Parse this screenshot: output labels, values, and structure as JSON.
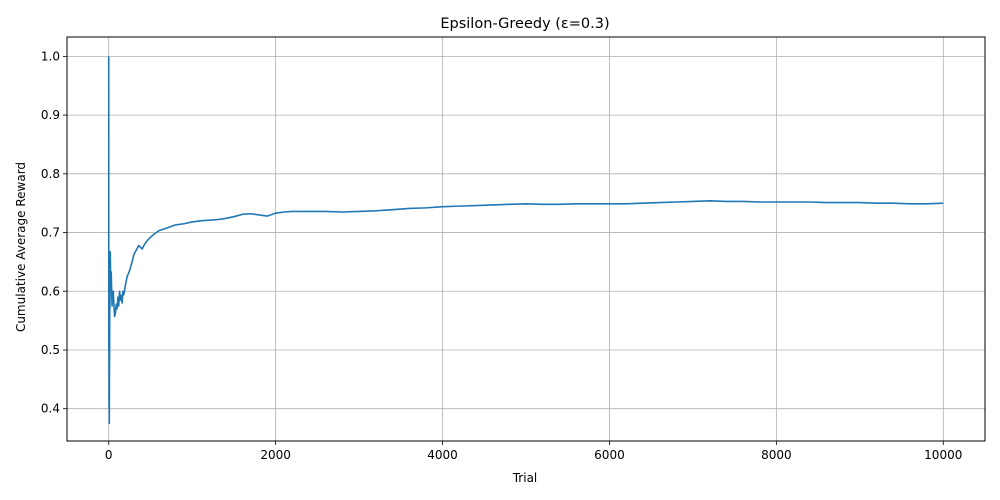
{
  "chart_data": {
    "type": "line",
    "title": "Epsilon-Greedy (ε=0.3)",
    "xlabel": "Trial",
    "ylabel": "Cumulative Average Reward",
    "xlim": [
      -500,
      10500
    ],
    "ylim": [
      0.345,
      1.033
    ],
    "xticks": [
      0,
      2000,
      4000,
      6000,
      8000,
      10000
    ],
    "yticks": [
      0.4,
      0.5,
      0.6,
      0.7,
      0.8,
      0.9,
      1.0
    ],
    "xtick_labels": [
      "0",
      "2000",
      "4000",
      "6000",
      "8000",
      "10000"
    ],
    "ytick_labels": [
      "0.4",
      "0.5",
      "0.6",
      "0.7",
      "0.8",
      "0.9",
      "1.0"
    ],
    "grid": true,
    "legend": "none",
    "line_color": "#1f77b4",
    "series": [
      {
        "values": [
          [
            0,
            1.0
          ],
          [
            1,
            0.5
          ],
          [
            2,
            0.667
          ],
          [
            3,
            0.5
          ],
          [
            4,
            0.4
          ],
          [
            5,
            0.5
          ],
          [
            6,
            0.429
          ],
          [
            7,
            0.375
          ],
          [
            8,
            0.444
          ],
          [
            10,
            0.5
          ],
          [
            12,
            0.583
          ],
          [
            14,
            0.571
          ],
          [
            16,
            0.625
          ],
          [
            18,
            0.667
          ],
          [
            20,
            0.65
          ],
          [
            25,
            0.6
          ],
          [
            30,
            0.633
          ],
          [
            35,
            0.6
          ],
          [
            40,
            0.575
          ],
          [
            45,
            0.6
          ],
          [
            50,
            0.58
          ],
          [
            55,
            0.6
          ],
          [
            60,
            0.583
          ],
          [
            70,
            0.557
          ],
          [
            80,
            0.563
          ],
          [
            90,
            0.578
          ],
          [
            100,
            0.57
          ],
          [
            110,
            0.59
          ],
          [
            120,
            0.575
          ],
          [
            130,
            0.6
          ],
          [
            140,
            0.585
          ],
          [
            150,
            0.593
          ],
          [
            160,
            0.58
          ],
          [
            170,
            0.6
          ],
          [
            180,
            0.594
          ],
          [
            200,
            0.61
          ],
          [
            220,
            0.625
          ],
          [
            250,
            0.635
          ],
          [
            280,
            0.65
          ],
          [
            300,
            0.662
          ],
          [
            330,
            0.67
          ],
          [
            360,
            0.678
          ],
          [
            400,
            0.672
          ],
          [
            430,
            0.68
          ],
          [
            460,
            0.686
          ],
          [
            500,
            0.692
          ],
          [
            550,
            0.698
          ],
          [
            600,
            0.703
          ],
          [
            700,
            0.708
          ],
          [
            800,
            0.713
          ],
          [
            900,
            0.715
          ],
          [
            1000,
            0.718
          ],
          [
            1100,
            0.72
          ],
          [
            1200,
            0.721
          ],
          [
            1300,
            0.722
          ],
          [
            1400,
            0.724
          ],
          [
            1500,
            0.727
          ],
          [
            1600,
            0.731
          ],
          [
            1700,
            0.732
          ],
          [
            1800,
            0.73
          ],
          [
            1900,
            0.728
          ],
          [
            2000,
            0.733
          ],
          [
            2100,
            0.735
          ],
          [
            2200,
            0.736
          ],
          [
            2400,
            0.736
          ],
          [
            2600,
            0.736
          ],
          [
            2800,
            0.735
          ],
          [
            3000,
            0.736
          ],
          [
            3200,
            0.737
          ],
          [
            3400,
            0.739
          ],
          [
            3600,
            0.741
          ],
          [
            3800,
            0.742
          ],
          [
            4000,
            0.744
          ],
          [
            4200,
            0.745
          ],
          [
            4400,
            0.746
          ],
          [
            4600,
            0.747
          ],
          [
            4800,
            0.748
          ],
          [
            5000,
            0.749
          ],
          [
            5200,
            0.748
          ],
          [
            5400,
            0.748
          ],
          [
            5600,
            0.749
          ],
          [
            5800,
            0.749
          ],
          [
            6000,
            0.749
          ],
          [
            6200,
            0.749
          ],
          [
            6400,
            0.75
          ],
          [
            6600,
            0.751
          ],
          [
            6800,
            0.752
          ],
          [
            7000,
            0.753
          ],
          [
            7200,
            0.754
          ],
          [
            7400,
            0.753
          ],
          [
            7600,
            0.753
          ],
          [
            7800,
            0.752
          ],
          [
            8000,
            0.752
          ],
          [
            8200,
            0.752
          ],
          [
            8400,
            0.752
          ],
          [
            8600,
            0.751
          ],
          [
            8800,
            0.751
          ],
          [
            9000,
            0.751
          ],
          [
            9200,
            0.75
          ],
          [
            9400,
            0.75
          ],
          [
            9600,
            0.749
          ],
          [
            9800,
            0.749
          ],
          [
            10000,
            0.75
          ]
        ]
      }
    ]
  }
}
